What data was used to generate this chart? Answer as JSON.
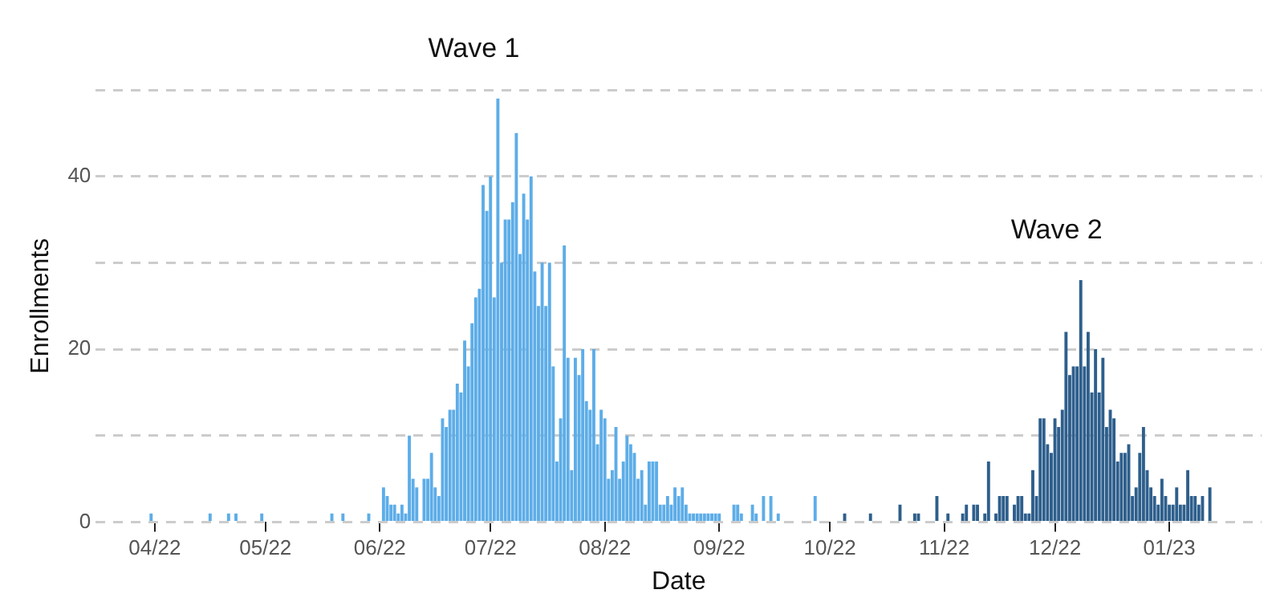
{
  "chart_data": {
    "type": "bar",
    "xlabel": "Date",
    "ylabel": "Enrollments",
    "xlim": [
      "2022-03-16",
      "2023-01-26"
    ],
    "xticks": [
      {
        "value": "2022-04-01",
        "label": "04/22"
      },
      {
        "value": "2022-05-01",
        "label": "05/22"
      },
      {
        "value": "2022-06-01",
        "label": "06/22"
      },
      {
        "value": "2022-07-01",
        "label": "07/22"
      },
      {
        "value": "2022-08-01",
        "label": "08/22"
      },
      {
        "value": "2022-09-01",
        "label": "09/22"
      },
      {
        "value": "2022-10-01",
        "label": "10/22"
      },
      {
        "value": "2022-11-01",
        "label": "11/22"
      },
      {
        "value": "2022-12-01",
        "label": "12/22"
      },
      {
        "value": "2023-01-01",
        "label": "01/23"
      }
    ],
    "ylim": [
      0,
      50
    ],
    "yticks": [
      0,
      {
        "value": 10,
        "label": null
      },
      20,
      {
        "value": 30,
        "label": null
      },
      40,
      {
        "value": 50,
        "label": null
      }
    ],
    "grid": "y",
    "line_style": "dashed",
    "legend": false,
    "series": [
      {
        "name": "Wave 1",
        "color": "#5dade8",
        "x": [
          "2022-03-31",
          "2022-04-16",
          "2022-04-21",
          "2022-04-23",
          "2022-04-30",
          "2022-05-19",
          "2022-05-22",
          "2022-05-29",
          "2022-06-02",
          "2022-06-03",
          "2022-06-04",
          "2022-06-05",
          "2022-06-06",
          "2022-06-07",
          "2022-06-08",
          "2022-06-09",
          "2022-06-10",
          "2022-06-11",
          "2022-06-13",
          "2022-06-14",
          "2022-06-15",
          "2022-06-16",
          "2022-06-17",
          "2022-06-18",
          "2022-06-19",
          "2022-06-20",
          "2022-06-21",
          "2022-06-22",
          "2022-06-23",
          "2022-06-24",
          "2022-06-25",
          "2022-06-26",
          "2022-06-27",
          "2022-06-28",
          "2022-06-29",
          "2022-06-30",
          "2022-07-01",
          "2022-07-02",
          "2022-07-03",
          "2022-07-04",
          "2022-07-05",
          "2022-07-06",
          "2022-07-07",
          "2022-07-08",
          "2022-07-09",
          "2022-07-10",
          "2022-07-11",
          "2022-07-12",
          "2022-07-13",
          "2022-07-14",
          "2022-07-15",
          "2022-07-16",
          "2022-07-17",
          "2022-07-18",
          "2022-07-19",
          "2022-07-20",
          "2022-07-21",
          "2022-07-22",
          "2022-07-23",
          "2022-07-24",
          "2022-07-25",
          "2022-07-26",
          "2022-07-27",
          "2022-07-28",
          "2022-07-29",
          "2022-07-30",
          "2022-07-31",
          "2022-08-01",
          "2022-08-02",
          "2022-08-03",
          "2022-08-04",
          "2022-08-05",
          "2022-08-06",
          "2022-08-07",
          "2022-08-08",
          "2022-08-09",
          "2022-08-10",
          "2022-08-11",
          "2022-08-12",
          "2022-08-13",
          "2022-08-14",
          "2022-08-15",
          "2022-08-16",
          "2022-08-17",
          "2022-08-18",
          "2022-08-19",
          "2022-08-20",
          "2022-08-21",
          "2022-08-22",
          "2022-08-23",
          "2022-08-24",
          "2022-08-25",
          "2022-08-26",
          "2022-08-27",
          "2022-08-28",
          "2022-08-29",
          "2022-08-30",
          "2022-08-31",
          "2022-09-01",
          "2022-09-05",
          "2022-09-06",
          "2022-09-07",
          "2022-09-10",
          "2022-09-11",
          "2022-09-13",
          "2022-09-15",
          "2022-09-17",
          "2022-09-27"
        ],
        "values": [
          1,
          1,
          1,
          1,
          1,
          1,
          1,
          1,
          4,
          3,
          2,
          2,
          1,
          2,
          1,
          10,
          5,
          4,
          5,
          5,
          8,
          4,
          3,
          12,
          11,
          13,
          13,
          16,
          15,
          21,
          18,
          23,
          26,
          27,
          39,
          36,
          40,
          26,
          49,
          30,
          35,
          35,
          37,
          45,
          31,
          38,
          35,
          40,
          29,
          25,
          30,
          25,
          30,
          18,
          7,
          12,
          32,
          19,
          6,
          19,
          17,
          20,
          14,
          13,
          20,
          9,
          13,
          12,
          5,
          6,
          11,
          5,
          7,
          10,
          9,
          8,
          5,
          6,
          2,
          7,
          7,
          7,
          2,
          2,
          3,
          2,
          4,
          3,
          4,
          2,
          1,
          1,
          1,
          1,
          1,
          1,
          1,
          1,
          1,
          2,
          2,
          1,
          2,
          1,
          3,
          3,
          1,
          3
        ]
      },
      {
        "name": "Wave 2",
        "color": "#2e5f8c",
        "x": [
          "2022-10-05",
          "2022-10-12",
          "2022-10-20",
          "2022-10-24",
          "2022-10-25",
          "2022-10-30",
          "2022-11-02",
          "2022-11-06",
          "2022-11-07",
          "2022-11-09",
          "2022-11-10",
          "2022-11-12",
          "2022-11-13",
          "2022-11-15",
          "2022-11-16",
          "2022-11-17",
          "2022-11-18",
          "2022-11-20",
          "2022-11-21",
          "2022-11-22",
          "2022-11-23",
          "2022-11-24",
          "2022-11-25",
          "2022-11-26",
          "2022-11-27",
          "2022-11-28",
          "2022-11-29",
          "2022-11-30",
          "2022-12-01",
          "2022-12-02",
          "2022-12-03",
          "2022-12-04",
          "2022-12-05",
          "2022-12-06",
          "2022-12-07",
          "2022-12-08",
          "2022-12-09",
          "2022-12-10",
          "2022-12-11",
          "2022-12-12",
          "2022-12-13",
          "2022-12-14",
          "2022-12-15",
          "2022-12-16",
          "2022-12-17",
          "2022-12-18",
          "2022-12-19",
          "2022-12-20",
          "2022-12-21",
          "2022-12-22",
          "2022-12-23",
          "2022-12-24",
          "2022-12-25",
          "2022-12-26",
          "2022-12-27",
          "2022-12-28",
          "2022-12-29",
          "2022-12-30",
          "2022-12-31",
          "2023-01-01",
          "2023-01-02",
          "2023-01-03",
          "2023-01-04",
          "2023-01-05",
          "2023-01-06",
          "2023-01-07",
          "2023-01-08",
          "2023-01-09",
          "2023-01-10",
          "2023-01-12"
        ],
        "values": [
          1,
          1,
          2,
          1,
          1,
          3,
          1,
          1,
          2,
          2,
          2,
          1,
          7,
          1,
          3,
          3,
          3,
          2,
          3,
          3,
          1,
          1,
          6,
          3,
          12,
          12,
          9,
          8,
          12,
          11,
          13,
          22,
          17,
          18,
          18,
          28,
          18,
          22,
          15,
          20,
          15,
          19,
          11,
          13,
          12,
          7,
          8,
          8,
          9,
          3,
          4,
          8,
          11,
          6,
          4,
          3,
          2,
          5,
          3,
          2,
          2,
          4,
          2,
          2,
          6,
          3,
          3,
          2,
          3,
          4
        ]
      }
    ]
  }
}
